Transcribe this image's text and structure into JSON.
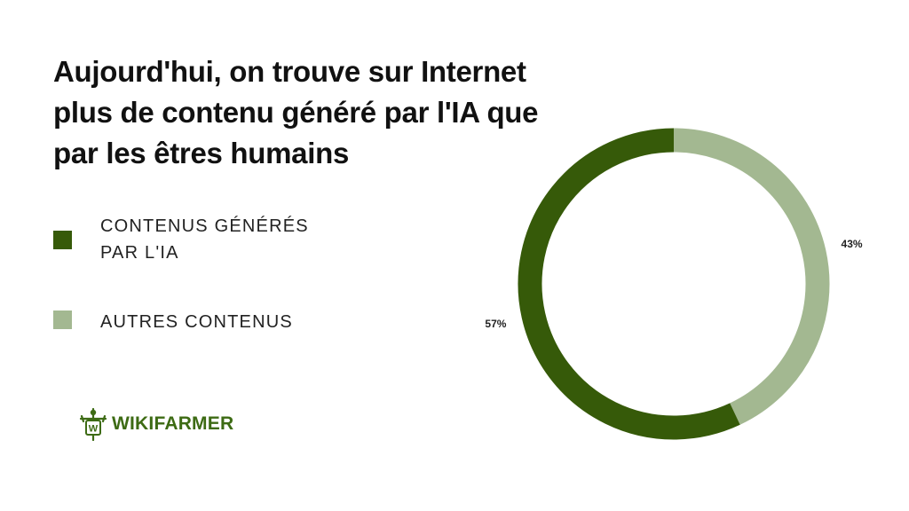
{
  "title": "Aujourd'hui, on trouve sur Internet plus de contenu généré par l'IA que par les êtres humains",
  "logo": {
    "text": "WIKIFARMER",
    "icon": "scarecrow-w-icon",
    "letter": "W",
    "color": "#3d6b14"
  },
  "colors": {
    "ai": "#365a09",
    "other": "#a3b891"
  },
  "chart_data": {
    "type": "pie",
    "variant": "donut",
    "title": "Aujourd'hui, on trouve sur Internet plus de contenu généré par l'IA que par les êtres humains",
    "legend_placement": "left",
    "series": [
      {
        "name": "CONTENUS GÉNÉRÉS\nPAR L'IA",
        "value": 57,
        "label": "57%",
        "color": "#365a09"
      },
      {
        "name": "AUTRES CONTENUS",
        "value": 43,
        "label": "43%",
        "color": "#a3b891"
      }
    ]
  }
}
